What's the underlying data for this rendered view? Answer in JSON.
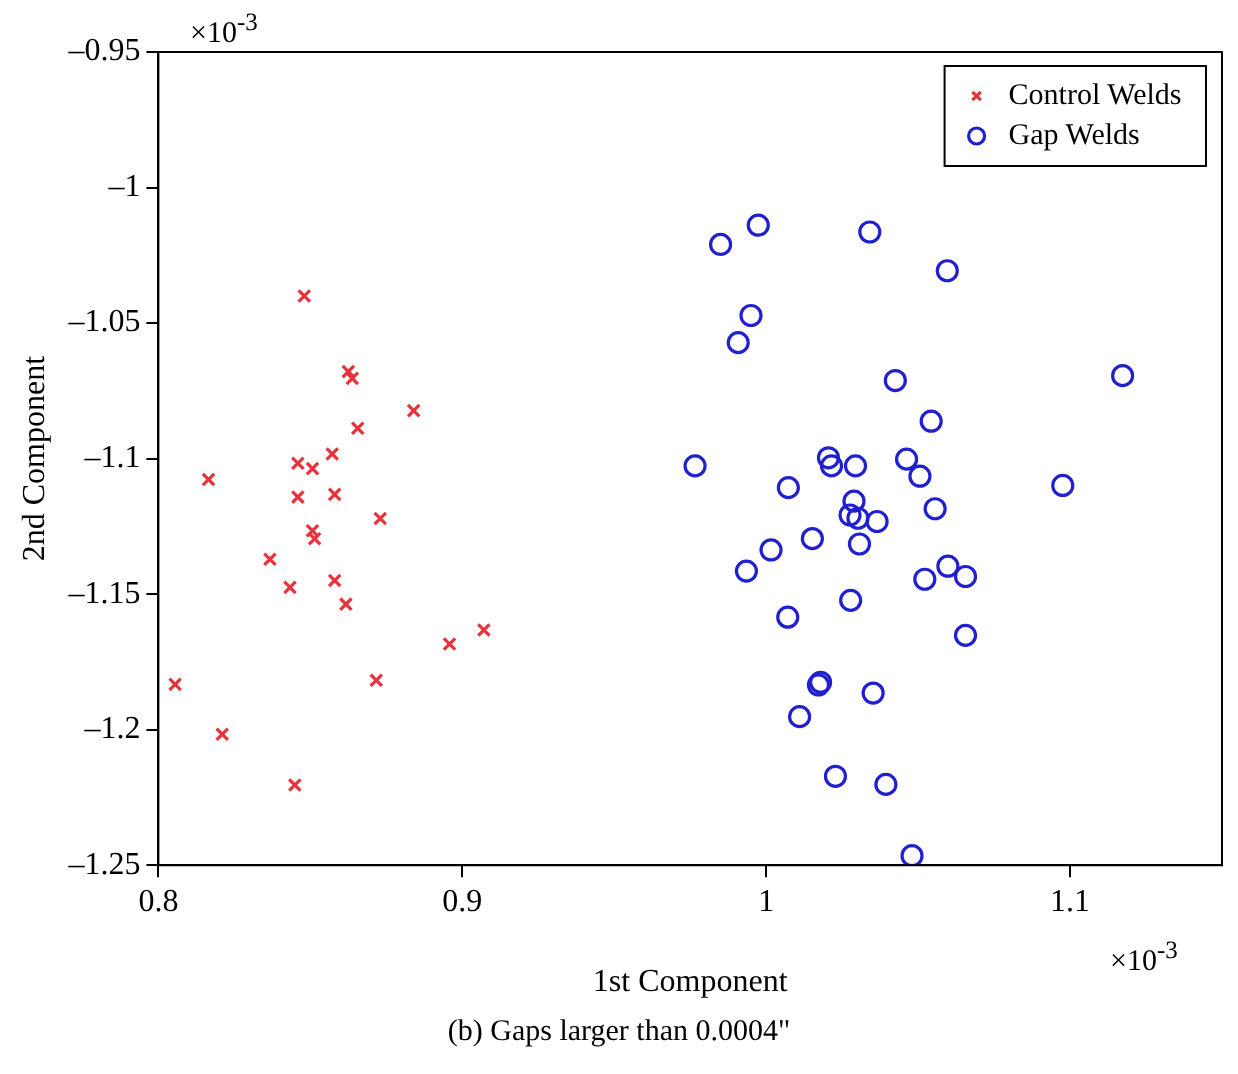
{
  "chart_data": {
    "type": "scatter",
    "xlabel": "1st Component",
    "ylabel": "2nd Component",
    "annotations": [
      "×10$^{-3}$",
      "×10$^{-3}$",
      "(b) Gaps larger than 0.0004\""
    ],
    "xlim": [
      0.8,
      1.15
    ],
    "xticks": [
      0.8,
      0.9,
      1,
      1.1
    ],
    "ylim": [
      -1.25,
      -0.95
    ],
    "yticks": [
      {
        "value": -1.25,
        "label": "–1.25"
      },
      {
        "value": -1.2,
        "label": "–1.2"
      },
      {
        "value": -1.15,
        "label": "–1.15"
      },
      {
        "value": -1.1,
        "label": "–1.1"
      },
      {
        "value": -1.05,
        "label": "–1.05"
      },
      {
        "value": -1,
        "label": "–1"
      },
      {
        "value": -0.95,
        "label": "–0.95"
      }
    ],
    "grid": false,
    "legend": "top right",
    "series": [
      {
        "name": "Control Welds",
        "color": "#e8323c",
        "marker": "cross",
        "x": [
          0.848,
          0.8625,
          0.8638,
          0.884,
          0.8656,
          0.8572,
          0.8459,
          0.8507,
          0.8165,
          0.8459,
          0.858,
          0.873,
          0.8507,
          0.8514,
          0.8367,
          0.8433,
          0.858,
          0.8617,
          0.8958,
          0.9071,
          0.8055,
          0.8717,
          0.821,
          0.8449
        ],
        "values": [
          -1.04,
          -1.0679,
          -1.0704,
          -1.0823,
          -1.0888,
          -1.0983,
          -1.1017,
          -1.1037,
          -1.1077,
          -1.1142,
          -1.1132,
          -1.1221,
          -1.1266,
          -1.1296,
          -1.1371,
          -1.1475,
          -1.145,
          -1.1537,
          -1.1684,
          -1.1632,
          -1.1833,
          -1.1818,
          -1.2017,
          -1.2204
        ]
      },
      {
        "name": "Gap Welds",
        "color": "#2020d0",
        "marker": "circle",
        "x": [
          0.985,
          0.9974,
          1.0341,
          1.0596,
          0.995,
          0.9908,
          1.0425,
          1.1173,
          1.0543,
          0.9766,
          1.0205,
          1.0215,
          1.0294,
          1.0462,
          1.0506,
          1.0073,
          1.0976,
          1.0289,
          1.0276,
          1.0302,
          1.0365,
          1.0556,
          1.0152,
          1.0016,
          1.0307,
          0.9935,
          1.0522,
          1.0598,
          1.0656,
          1.0278,
          1.0071,
          1.0656,
          1.0179,
          1.0172,
          1.0352,
          1.011,
          1.0228,
          1.0394,
          1.048
        ],
        "values": [
          -1.021,
          -1.0139,
          -1.0164,
          -1.0307,
          -1.0472,
          -1.0572,
          -1.0712,
          -1.0694,
          -1.0862,
          -1.1027,
          -1.0997,
          -1.1027,
          -1.1027,
          -1.1002,
          -1.1065,
          -1.1107,
          -1.1099,
          -1.1157,
          -1.1208,
          -1.122,
          -1.1232,
          -1.1185,
          -1.1295,
          -1.1337,
          -1.1315,
          -1.1415,
          -1.1445,
          -1.1397,
          -1.1435,
          -1.1523,
          -1.1585,
          -1.1652,
          -1.1825,
          -1.1835,
          -1.1865,
          -1.1952,
          -1.2172,
          -1.2202,
          -1.2465
        ]
      }
    ]
  }
}
